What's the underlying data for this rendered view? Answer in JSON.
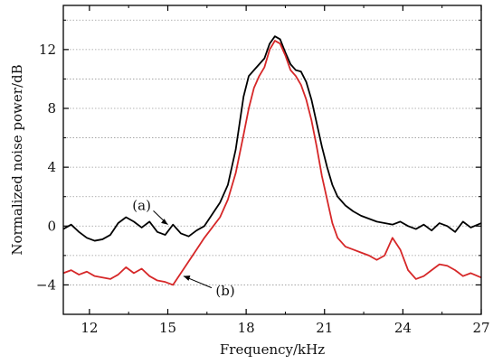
{
  "chart_data": {
    "type": "line",
    "title": "",
    "xlabel": "Frequency/kHz",
    "ylabel": "Normalized noise power/dB",
    "xlim": [
      11,
      27
    ],
    "ylim": [
      -6,
      15
    ],
    "xticks": [
      12,
      15,
      18,
      21,
      24,
      27
    ],
    "yticks": [
      -4,
      0,
      4,
      8,
      12
    ],
    "ytick_labels": [
      "−4",
      "0",
      "4",
      "8",
      "12"
    ],
    "grid": "dotted horizontal lines at 2 dB intervals",
    "legend": "none",
    "series": [
      {
        "color": "#000000",
        "x": [
          11.0,
          11.3,
          11.6,
          11.9,
          12.2,
          12.5,
          12.8,
          13.1,
          13.4,
          13.7,
          14.0,
          14.3,
          14.6,
          14.9,
          15.2,
          15.5,
          15.8,
          16.1,
          16.4,
          16.7,
          17.0,
          17.3,
          17.6,
          17.9,
          18.1,
          18.3,
          18.5,
          18.7,
          18.9,
          19.1,
          19.3,
          19.5,
          19.7,
          19.9,
          20.1,
          20.3,
          20.5,
          20.7,
          20.9,
          21.1,
          21.3,
          21.5,
          21.8,
          22.1,
          22.4,
          22.7,
          23.0,
          23.3,
          23.6,
          23.9,
          24.2,
          24.5,
          24.8,
          25.1,
          25.4,
          25.7,
          26.0,
          26.3,
          26.6,
          27.0
        ],
        "values": [
          -0.2,
          0.1,
          -0.4,
          -0.8,
          -1.0,
          -0.9,
          -0.6,
          0.2,
          0.6,
          0.3,
          -0.1,
          0.3,
          -0.4,
          -0.6,
          0.1,
          -0.5,
          -0.7,
          -0.3,
          0.0,
          0.8,
          1.6,
          2.8,
          5.2,
          8.8,
          10.2,
          10.6,
          11.0,
          11.4,
          12.4,
          12.9,
          12.7,
          11.8,
          11.0,
          10.6,
          10.5,
          9.8,
          8.6,
          7.0,
          5.4,
          4.0,
          2.8,
          2.0,
          1.4,
          1.0,
          0.7,
          0.5,
          0.3,
          0.2,
          0.1,
          0.3,
          0.0,
          -0.2,
          0.1,
          -0.3,
          0.2,
          0.0,
          -0.4,
          0.3,
          -0.1,
          0.2
        ]
      },
      {
        "color": "#d62728",
        "x": [
          11.0,
          11.3,
          11.6,
          11.9,
          12.2,
          12.5,
          12.8,
          13.1,
          13.4,
          13.7,
          14.0,
          14.3,
          14.6,
          14.9,
          15.2,
          15.5,
          15.8,
          16.1,
          16.4,
          16.7,
          17.0,
          17.3,
          17.6,
          17.9,
          18.1,
          18.3,
          18.5,
          18.7,
          18.9,
          19.1,
          19.3,
          19.5,
          19.7,
          19.9,
          20.1,
          20.3,
          20.5,
          20.7,
          20.9,
          21.1,
          21.3,
          21.5,
          21.8,
          22.1,
          22.4,
          22.7,
          23.0,
          23.3,
          23.6,
          23.9,
          24.2,
          24.5,
          24.8,
          25.1,
          25.4,
          25.7,
          26.0,
          26.3,
          26.6,
          27.0
        ],
        "values": [
          -3.2,
          -3.0,
          -3.3,
          -3.1,
          -3.4,
          -3.5,
          -3.6,
          -3.3,
          -2.8,
          -3.2,
          -2.9,
          -3.4,
          -3.7,
          -3.8,
          -4.0,
          -3.2,
          -2.4,
          -1.6,
          -0.8,
          -0.1,
          0.6,
          1.8,
          3.6,
          6.2,
          8.0,
          9.4,
          10.2,
          10.8,
          12.0,
          12.6,
          12.4,
          11.6,
          10.6,
          10.2,
          9.6,
          8.6,
          7.2,
          5.4,
          3.4,
          1.8,
          0.2,
          -0.8,
          -1.4,
          -1.6,
          -1.8,
          -2.0,
          -2.3,
          -2.0,
          -0.8,
          -1.6,
          -3.0,
          -3.6,
          -3.4,
          -3.0,
          -2.6,
          -2.7,
          -3.0,
          -3.4,
          -3.2,
          -3.5
        ]
      }
    ],
    "annotations": [
      {
        "text": "(a)",
        "x": 14.0,
        "y": 1.4,
        "arrow_to": [
          15.0,
          0.1
        ]
      },
      {
        "text": "(b)",
        "x": 17.2,
        "y": -4.4,
        "arrow_to": [
          15.6,
          -3.4
        ]
      }
    ]
  }
}
